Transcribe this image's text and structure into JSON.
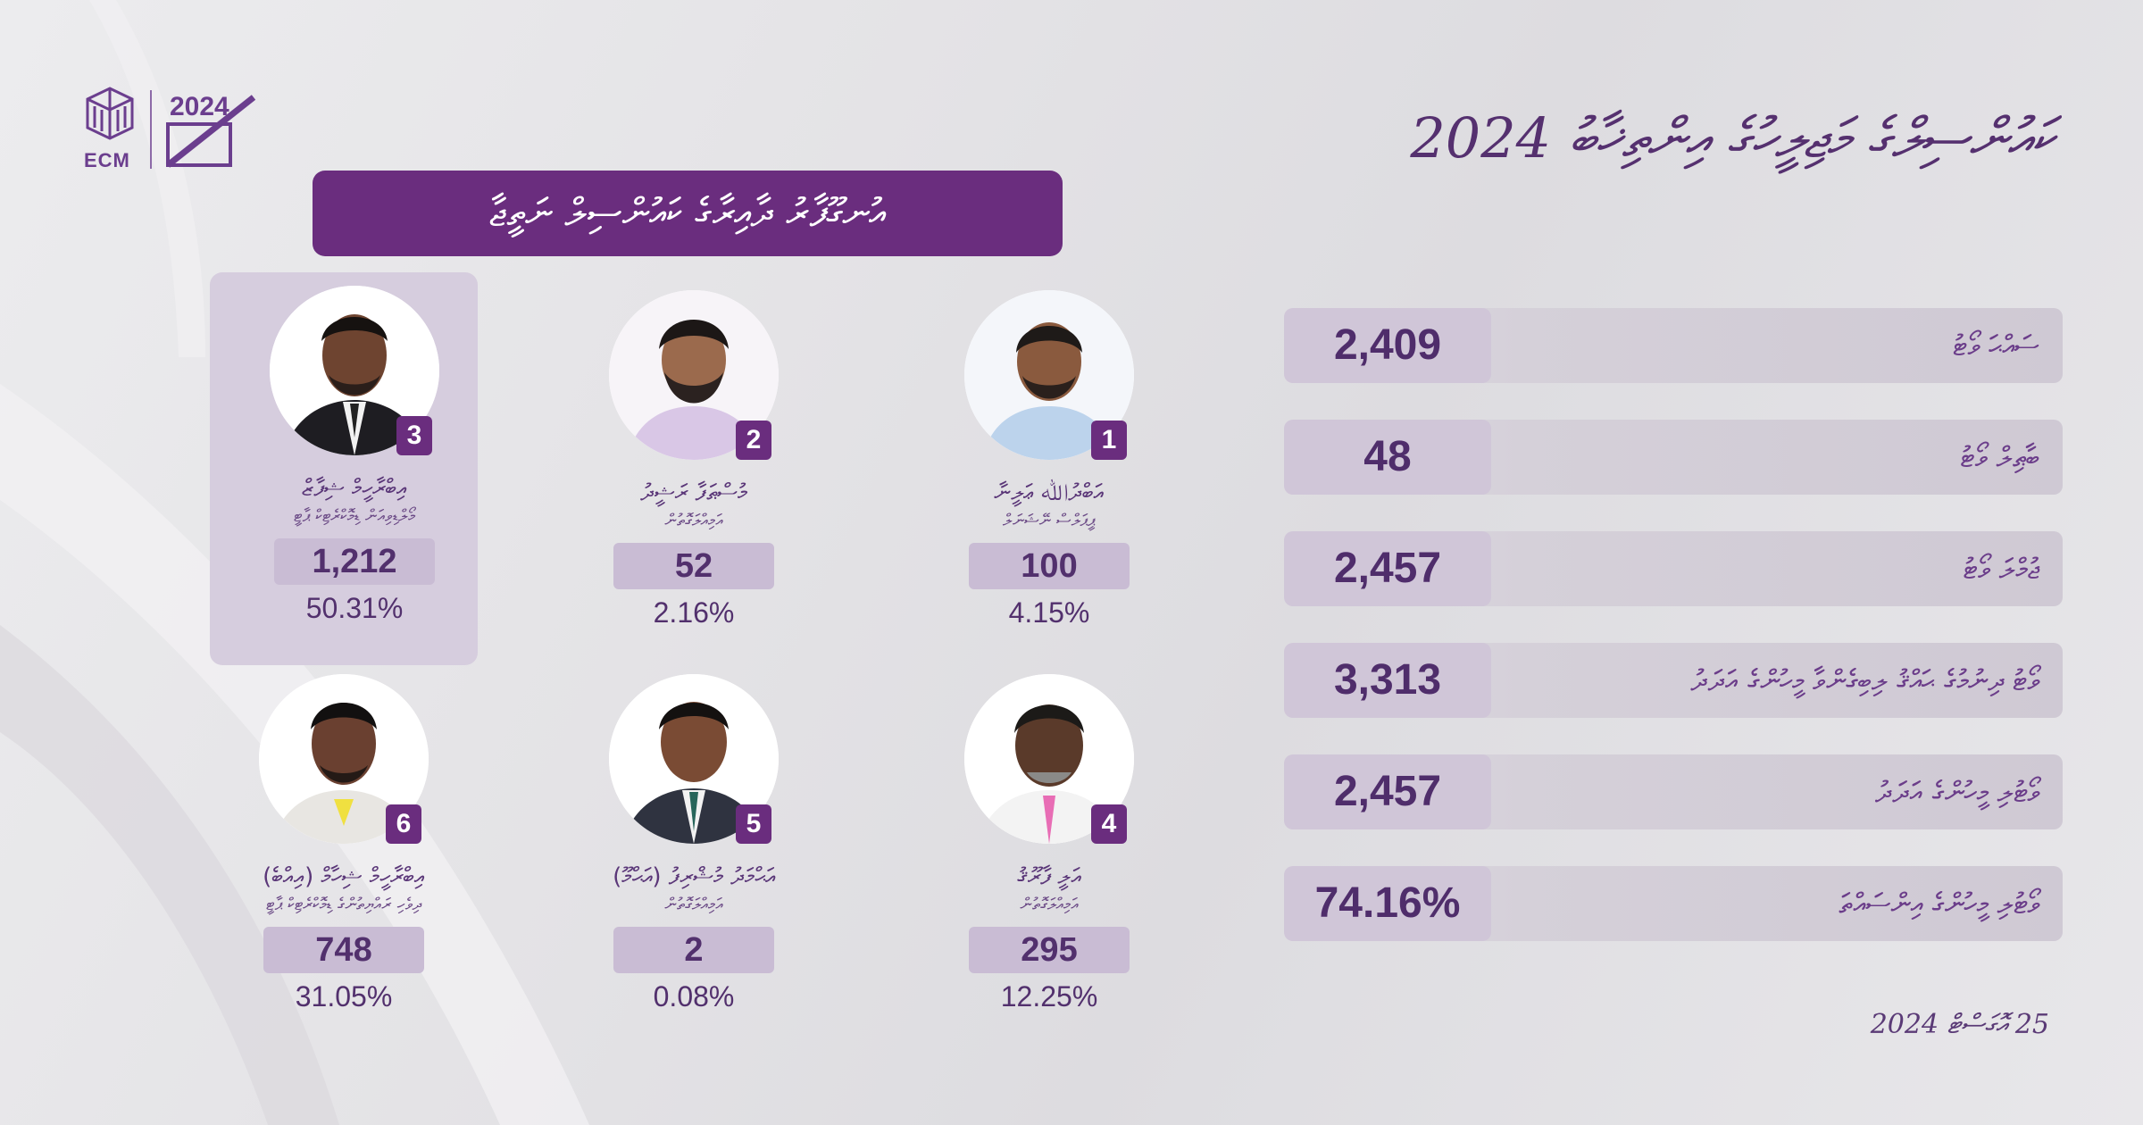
{
  "logo": {
    "ecm_text": "ECM",
    "election_mark": "2024"
  },
  "title": "ކައުންސިލްގެ މަޖިލީހުގެ އިންތިޚާބު 2024",
  "banner": "އުނގޫފާރު ދާއިރާގެ ކައުންސިލް ނަތީޖާ",
  "candidates": [
    {
      "number": "1",
      "name": "އަބްދުﷲ ޢަލީނާ",
      "party": "ޕީޕަލްސް ނޭޝަނަލް",
      "votes": "100",
      "percent": "4.15%"
    },
    {
      "number": "2",
      "name": "މުސްޠަފާ ރަޝީދު",
      "party": "އަމިއްލަގޮތުން",
      "votes": "52",
      "percent": "2.16%"
    },
    {
      "number": "3",
      "name": "އިބްރާހީމް ޝިފާޒް",
      "party": "މޯލްޑިވިއަން ޑިމޮކްރެޓިކް ޕާޓީ",
      "votes": "1,212",
      "percent": "50.31%"
    },
    {
      "number": "4",
      "name": "އަލީ ފާރޫޤު",
      "party": "އަމިއްލަގޮތުން",
      "votes": "295",
      "percent": "12.25%"
    },
    {
      "number": "5",
      "name": "އަޙްމަދު މުޝްރިފު (އަޙްމޫ)",
      "party": "އަމިއްލަގޮތުން",
      "votes": "2",
      "percent": "0.08%"
    },
    {
      "number": "6",
      "name": "އިބްރާހީމް ޝިހާމް (އިއްބެ)",
      "party": "ދިވެހި ރައްޔިތުންގެ ޑިމޮކްރެޓިކް ޕާޓީ",
      "votes": "748",
      "percent": "31.05%"
    }
  ],
  "stats": [
    {
      "label": "ސައްޙަ ވޯޓު",
      "value": "2,409"
    },
    {
      "label": "ބާޠިލް ވޯޓު",
      "value": "48"
    },
    {
      "label": "ޖުމްލަ ވޯޓު",
      "value": "2,457"
    },
    {
      "label": "ވޯޓު ދިނުމުގެ ޙައްޤު ލިބިގެންވާ މީހުންގެ އަދަދު",
      "value": "3,313"
    },
    {
      "label": "ވޯޓުލި މީހުންގެ އަދަދު",
      "value": "2,457"
    },
    {
      "label": "ވޯޓުލި މީހުންގެ އިންސައްތަ",
      "value": "74.16%"
    }
  ],
  "date": "25 އޮގަސްޓް 2024",
  "colors": {
    "primary": "#6a2d7e",
    "background": "#e6e5e8",
    "bar": "#d0c6d8"
  }
}
